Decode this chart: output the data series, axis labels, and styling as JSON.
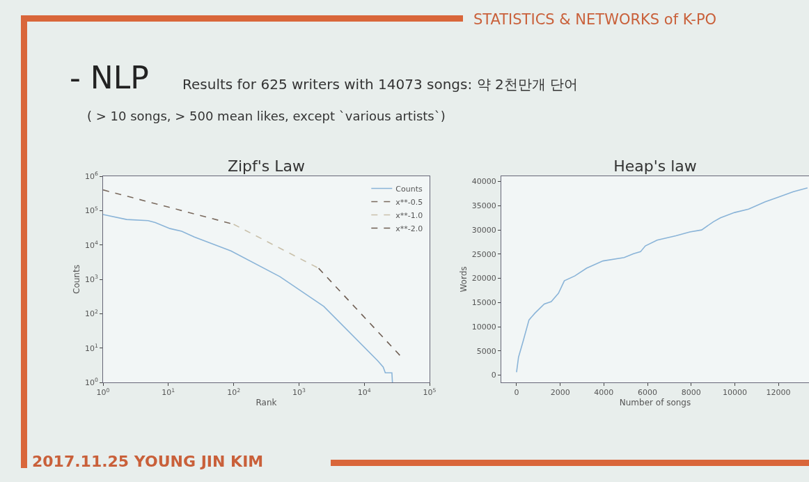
{
  "chart_data": [
    {
      "type": "line",
      "title": "Zipf's Law",
      "xlabel": "Rank",
      "ylabel": "Counts",
      "log": "xy",
      "grid": false,
      "legend": "top right",
      "annotations": [
        "STATISTICS & NETWORKS of K-PO",
        "- NLP",
        "Results for 625 writers with 14073 songs: 약 2천만개 단어",
        "( > 10 songs, > 500 mean likes, except `various artists`)",
        "2017.11.25 YOUNG JIN KIM"
      ],
      "xlim": [
        1,
        100000
      ],
      "ylim": [
        1,
        1000000
      ],
      "xticks": [
        {
          "value": 1,
          "label": "10$^{0}$"
        },
        {
          "value": 10,
          "label": "10$^{1}$"
        },
        {
          "value": 100,
          "label": "10$^{2}$"
        },
        {
          "value": 1000,
          "label": "10$^{3}$"
        },
        {
          "value": 10000,
          "label": "10$^{4}$"
        },
        {
          "value": 100000,
          "label": "10$^{5}$"
        }
      ],
      "yticks": [
        {
          "value": 1,
          "label": "10$^{0}$"
        },
        {
          "value": 10,
          "label": "10$^{1}$"
        },
        {
          "value": 100,
          "label": "10$^{2}$"
        },
        {
          "value": 1000,
          "label": "10$^{3}$"
        },
        {
          "value": 10000,
          "label": "10$^{4}$"
        },
        {
          "value": 100000,
          "label": "10$^{5}$"
        },
        {
          "value": 1000000,
          "label": "10$^{6}$"
        }
      ],
      "series": [
        {
          "name": "Counts",
          "color": "#8ab4d8",
          "line_style": "solid",
          "x": [
            1,
            2.3,
            4.9,
            6.3,
            10.6,
            16,
            25,
            91,
            510,
            2400,
            16000,
            19500,
            21000,
            26500,
            27000
          ],
          "values": [
            77000,
            55000,
            51000,
            45000,
            30000,
            25000,
            17000,
            6700,
            1200,
            163,
            4.3,
            2.8,
            1.9,
            1.9,
            1
          ]
        },
        {
          "name": "x**-0.5",
          "color": "#7a6a5e",
          "line_style": "dashed",
          "x": [
            1,
            100
          ],
          "values": [
            400000,
            40000
          ]
        },
        {
          "name": "x**-1.0",
          "color": "#c9c0aa",
          "line_style": "dashed",
          "x": [
            100,
            2000
          ],
          "values": [
            40000,
            2100
          ]
        },
        {
          "name": "x**-2.0",
          "color": "#6e5d52",
          "line_style": "dashed",
          "x": [
            2000,
            37000
          ],
          "values": [
            2100,
            5.5
          ]
        }
      ]
    },
    {
      "type": "line",
      "title": "Heap's law",
      "xlabel": "Number of songs",
      "ylabel": "Words",
      "grid": false,
      "legend": false,
      "xlim": [
        -700,
        13400
      ],
      "ylim": [
        -1500,
        41100
      ],
      "xticks": [
        0,
        2000,
        4000,
        6000,
        8000,
        10000,
        12000
      ],
      "yticks": [
        0,
        5000,
        10000,
        15000,
        20000,
        25000,
        30000,
        35000,
        40000
      ],
      "series": [
        {
          "color": "#8ab4d8",
          "line_style": "solid",
          "x": [
            0,
            90,
            300,
            570,
            840,
            1270,
            1590,
            1920,
            2190,
            2670,
            3210,
            3960,
            4930,
            5360,
            5680,
            5900,
            6440,
            7300,
            7940,
            8480,
            9020,
            9340,
            9990,
            10630,
            11390,
            12000,
            12680,
            13330
          ],
          "values": [
            600,
            3700,
            7000,
            11400,
            12800,
            14700,
            15200,
            16900,
            19500,
            20500,
            22100,
            23600,
            24300,
            25100,
            25500,
            26700,
            27900,
            28800,
            29600,
            30000,
            31700,
            32500,
            33600,
            34300,
            35800,
            36800,
            37900,
            38700
          ]
        }
      ]
    }
  ]
}
